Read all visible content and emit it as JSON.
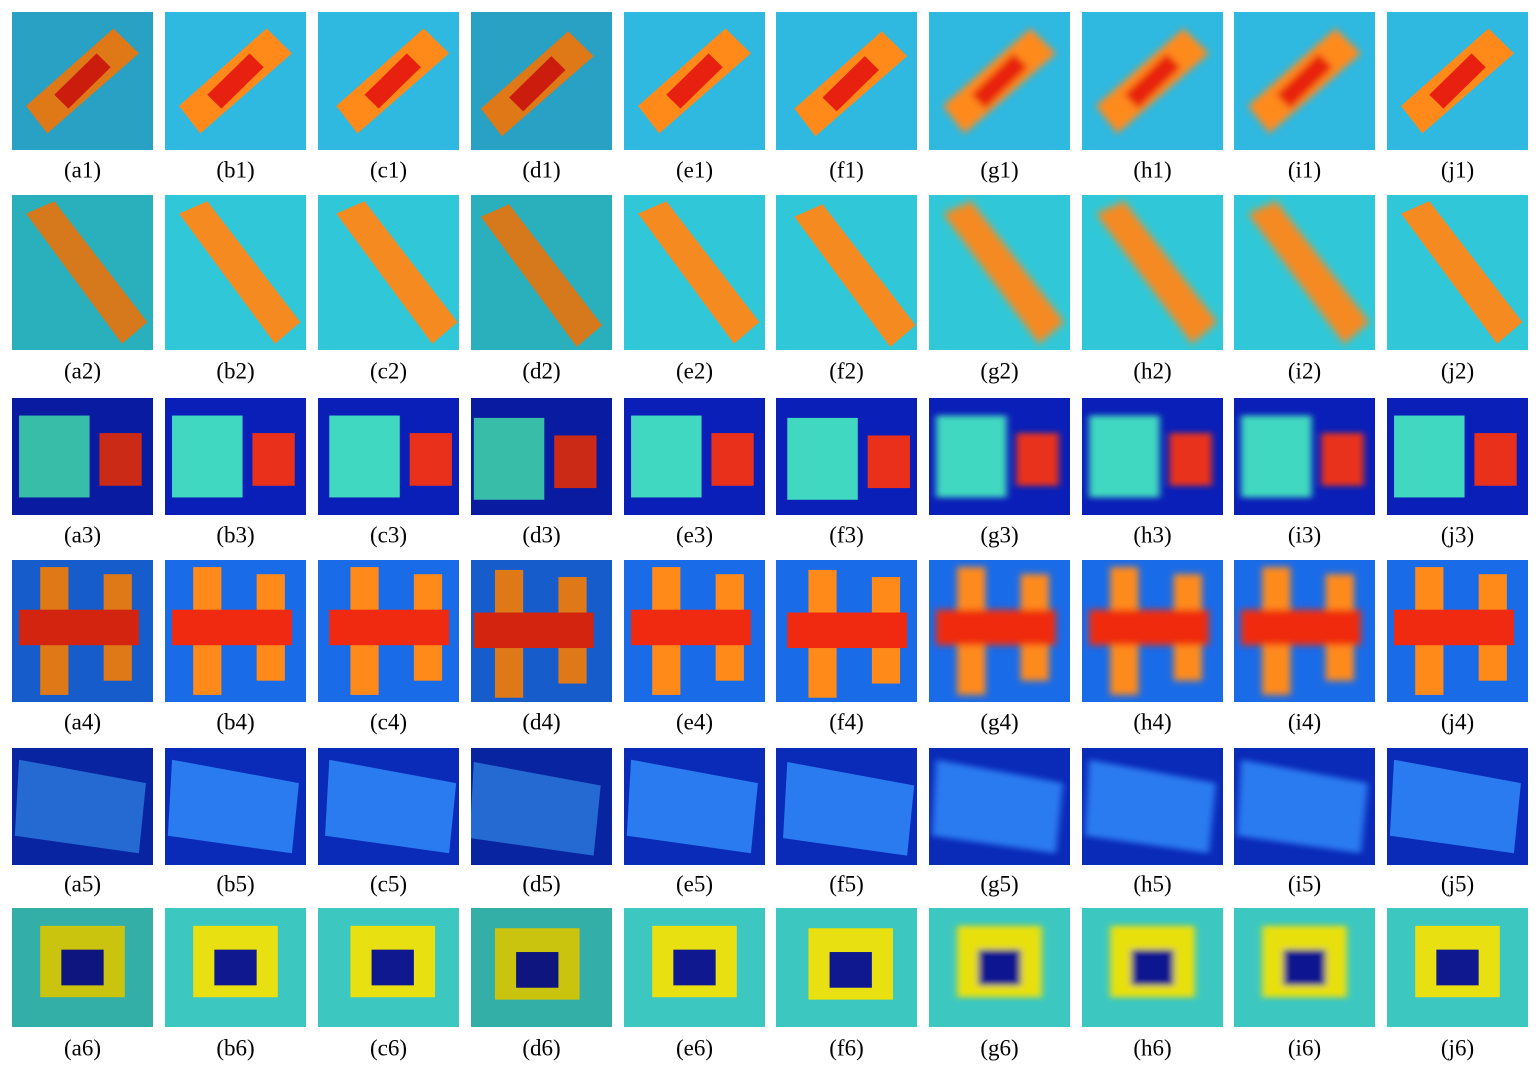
{
  "figure": {
    "rows": [
      [
        "(a1)",
        "(b1)",
        "(c1)",
        "(d1)",
        "(e1)",
        "(f1)",
        "(g1)",
        "(h1)",
        "(i1)",
        "(j1)"
      ],
      [
        "(a2)",
        "(b2)",
        "(c2)",
        "(d2)",
        "(e2)",
        "(f2)",
        "(g2)",
        "(h2)",
        "(i2)",
        "(j2)"
      ],
      [
        "(a3)",
        "(b3)",
        "(c3)",
        "(d3)",
        "(e3)",
        "(f3)",
        "(g3)",
        "(h3)",
        "(i3)",
        "(j3)"
      ],
      [
        "(a4)",
        "(b4)",
        "(c4)",
        "(d4)",
        "(e4)",
        "(f4)",
        "(g4)",
        "(h4)",
        "(i4)",
        "(j4)"
      ],
      [
        "(a5)",
        "(b5)",
        "(c5)",
        "(d5)",
        "(e5)",
        "(f5)",
        "(g5)",
        "(h5)",
        "(i5)",
        "(j5)"
      ],
      [
        "(a6)",
        "(b6)",
        "(c6)",
        "(d6)",
        "(e6)",
        "(f6)",
        "(g6)",
        "(h6)",
        "(i6)",
        "(j6)"
      ]
    ]
  }
}
